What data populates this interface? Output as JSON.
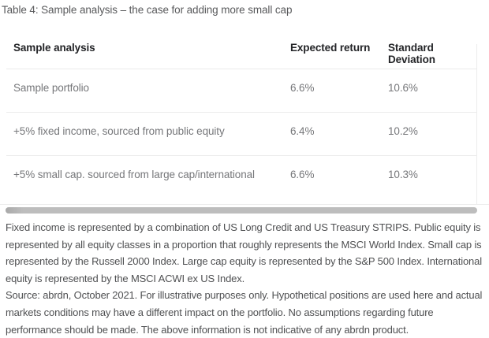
{
  "title": "Table 4: Sample analysis – the case for adding more small cap",
  "table": {
    "headers": [
      "Sample analysis",
      "Expected return",
      "Standard Deviation"
    ],
    "rows": [
      {
        "name": "Sample portfolio",
        "expected_return": "6.6%",
        "standard_deviation": "10.6%"
      },
      {
        "name": "+5% fixed income, sourced from public equity",
        "expected_return": "6.4%",
        "standard_deviation": "10.2%"
      },
      {
        "name": "+5% small cap. sourced from large cap/international",
        "expected_return": "6.6%",
        "standard_deviation": "10.3%"
      }
    ]
  },
  "footnotes": {
    "definitions": "Fixed income is represented by a combination of US Long Credit and US Treasury STRIPS. Public equity is represented by all equity classes in a proportion that roughly represents the MSCI World Index. Small cap is represented by the Russell 2000 Index. Large cap equity is represented by the S&P 500 Index. International equity is represented by the MSCI ACWI ex US Index.",
    "source": "Source: abrdn, October 2021. For illustrative purposes only. Hypothetical positions are used here and actual markets conditions may have a different impact on the portfolio. No assumptions regarding future performance should be made. The above information is not indicative of any abrdn product."
  },
  "colors": {
    "background": "#ffffff",
    "title_text": "#58595b",
    "header_text": "#232427",
    "row_text": "#76777a",
    "footnote_text": "#4f5052",
    "divider": "#ebebeb",
    "scrollbar_thumb": "#bdbdbd"
  }
}
